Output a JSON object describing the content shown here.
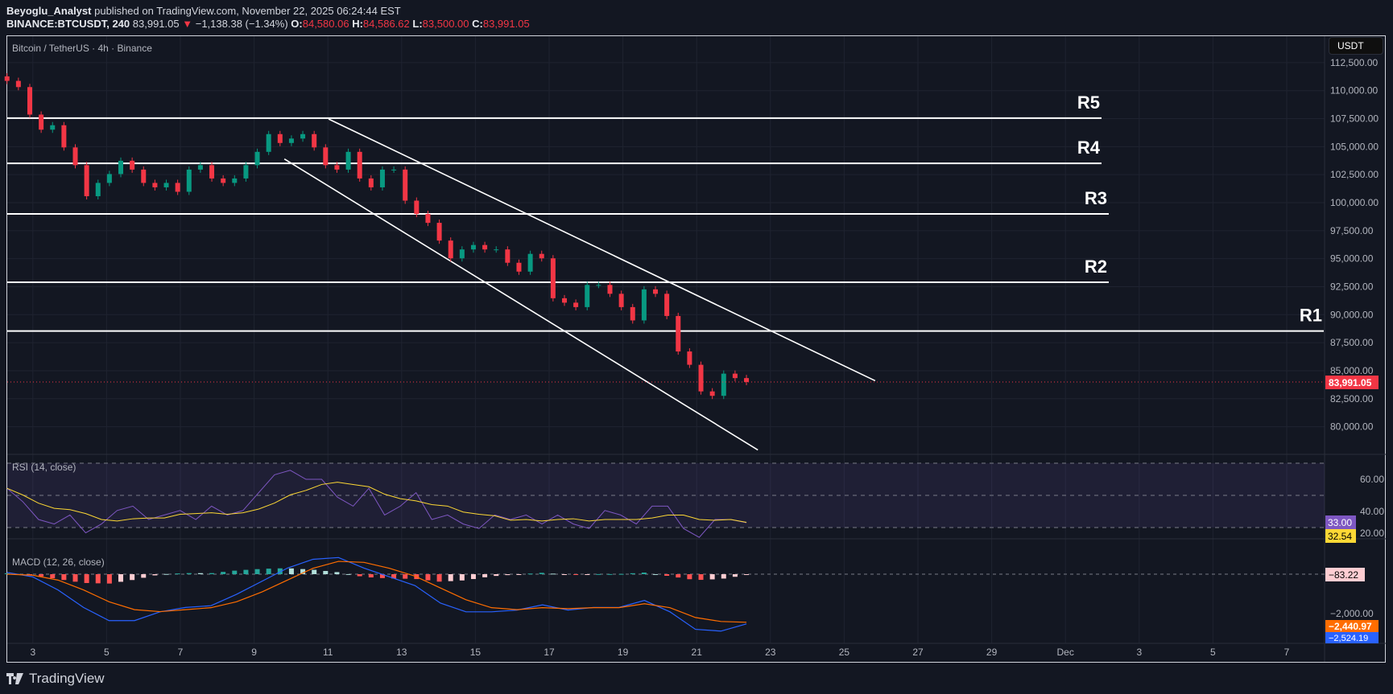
{
  "header": {
    "author": "Beyoglu_Analyst",
    "published": "published on TradingView.com, November 22, 2025 06:24:44 EST",
    "symbol": "BINANCE:BTCUSDT, 240",
    "last": "83,991.05",
    "change": "−1,138.38 (−1.34%)",
    "o_label": "O:",
    "o": "84,580.06",
    "h_label": "H:",
    "h": "84,586.62",
    "l_label": "L:",
    "l": "83,500.00",
    "c_label": "C:",
    "c": "83,991.05"
  },
  "chart": {
    "title": "Bitcoin / TetherUS · 4h · Binance",
    "currency_button": "USDT",
    "price_label": "83,991.05",
    "rsi_label": "RSI (14, close)",
    "macd_label": "MACD (12, 26, close)",
    "rsi_value": "33.00",
    "rsi_ma_value": "32.54",
    "macd_hist_value": "−83.22",
    "signal_value": "−2,440.97",
    "macd_value": "−2,524.19",
    "footer_logo": "TradingView"
  },
  "colors": {
    "up": "#089981",
    "down": "#f23645",
    "rsi": "#7e57c2",
    "rsi_ma": "#fdd835",
    "macd": "#2962ff",
    "signal": "#ff6d00",
    "bg": "#131722"
  },
  "chart_data": {
    "type": "candlestick",
    "price_ticks": [
      "112,500.00",
      "110,000.00",
      "107,500.00",
      "105,000.00",
      "102,500.00",
      "100,000.00",
      "97,500.00",
      "95,000.00",
      "92,500.00",
      "90,000.00",
      "87,500.00",
      "85,000.00",
      "82,500.00",
      "80,000.00"
    ],
    "time_ticks": [
      "3",
      "5",
      "7",
      "9",
      "11",
      "13",
      "15",
      "17",
      "19",
      "21",
      "23",
      "25",
      "27",
      "29",
      "Dec",
      "3",
      "5",
      "7"
    ],
    "time_range_days": [
      2.3,
      22.35
    ],
    "closes": [
      110871,
      110317,
      107862,
      106515,
      106911,
      104931,
      103347,
      100575,
      101763,
      102555,
      103743,
      102951,
      101763,
      101367,
      101763,
      100971,
      102951,
      103347,
      102159,
      101763,
      102159,
      103347,
      104535,
      106119,
      105327,
      105723,
      106119,
      104931,
      103347,
      102951,
      104535,
      102159,
      101367,
      102951,
      102951,
      100179,
      98991,
      98199,
      96615,
      95031,
      95823,
      96219,
      95823,
      95823,
      94635,
      93843,
      95427,
      95031,
      91467,
      91071,
      90675,
      92655,
      92655,
      91863,
      90675,
      89487,
      92259,
      91863,
      89883,
      86715,
      85527,
      83151,
      82755,
      84735,
      84339,
      83991
    ],
    "levels": [
      {
        "name": "R5",
        "price": 107545
      },
      {
        "name": "R4",
        "price": 103506
      },
      {
        "name": "R3",
        "price": 98991
      },
      {
        "name": "R2",
        "price": 92893
      },
      {
        "name": "R1",
        "price": 88537
      }
    ],
    "trendlines": [
      {
        "from": [
          11.02,
          107466
        ],
        "to": [
          25.84,
          84102
        ]
      },
      {
        "from": [
          9.82,
          103902
        ],
        "to": [
          22.66,
          77924
        ]
      }
    ],
    "rsi": {
      "ticks": [
        "60.00",
        "40.00",
        "20.00"
      ],
      "bands": [
        70,
        50,
        30
      ],
      "values": [
        54.4,
        46.1,
        35,
        32.2,
        37.8,
        26.7,
        32.2,
        40.6,
        43.3,
        35,
        37.8,
        40.6,
        35,
        43.3,
        37.8,
        40.6,
        51.7,
        62.8,
        65.6,
        60,
        60,
        48.9,
        43.3,
        54.4,
        37.8,
        43.3,
        51.7,
        35,
        37.8,
        32.2,
        29.4,
        37.8,
        35,
        37.8,
        32.2,
        37.8,
        32.2,
        29.4,
        40.6,
        37.8,
        32.2,
        43.3,
        43.3,
        29.4,
        23.9,
        35,
        35,
        33
      ]
    },
    "macd": {
      "ticks": [
        "−2,000.00"
      ],
      "macd": [
        89,
        -133,
        -800,
        -1689,
        -2356,
        -2356,
        -1911,
        -1689,
        -1600,
        -1022,
        -356,
        311,
        756,
        844,
        311,
        -133,
        -578,
        -1467,
        -1911,
        -1911,
        -1822,
        -1556,
        -1822,
        -1689,
        -1689,
        -1333,
        -1911,
        -2800,
        -2889,
        -2524
      ],
      "signal": [
        0,
        -50,
        -300,
        -800,
        -1400,
        -1800,
        -1900,
        -1800,
        -1700,
        -1400,
        -900,
        -300,
        300,
        650,
        600,
        300,
        -100,
        -700,
        -1300,
        -1700,
        -1800,
        -1700,
        -1750,
        -1700,
        -1700,
        -1500,
        -1700,
        -2200,
        -2400,
        -2441
      ]
    }
  }
}
